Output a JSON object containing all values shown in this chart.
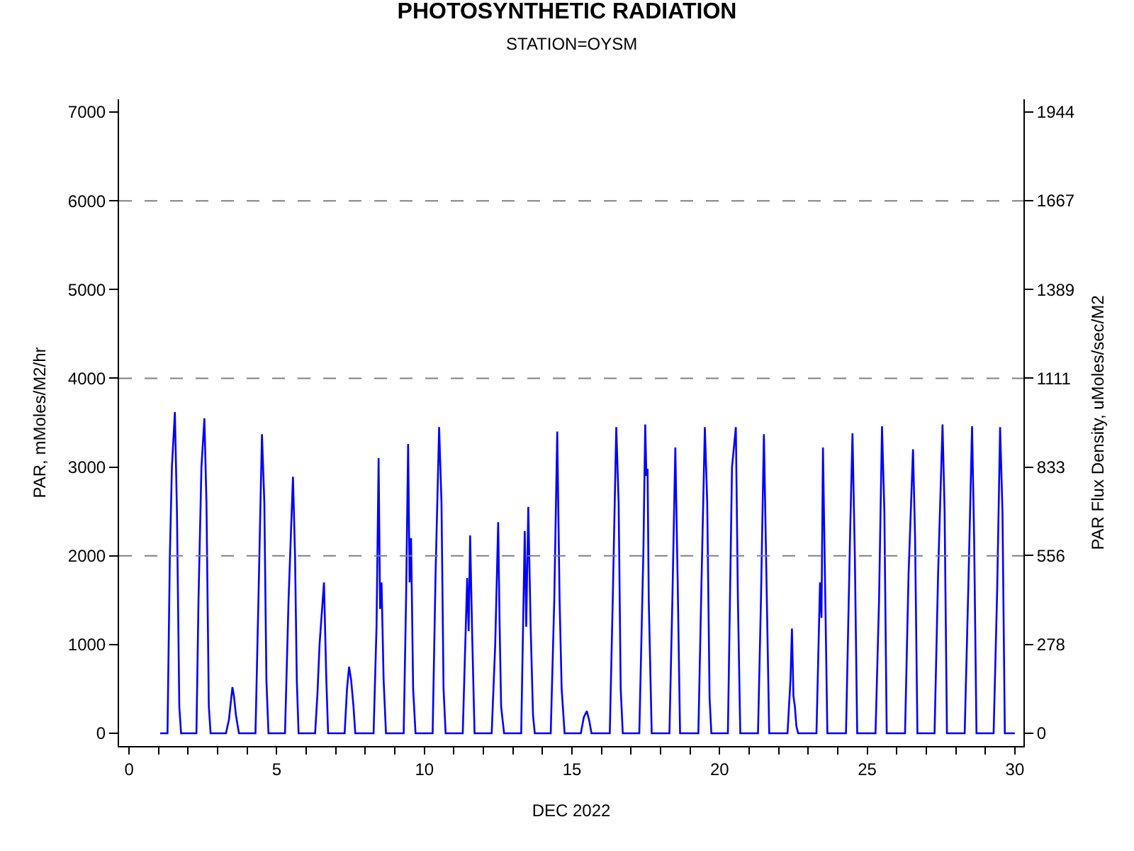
{
  "chart_data": {
    "type": "line",
    "title": "PHOTOSYNTHETIC RADIATION",
    "subtitle": "STATION=OYSM",
    "xlabel": "DEC 2022",
    "ylabel": "PAR, mMoles/M2/hr",
    "y2label": "PAR Flux Density, uMoles/sec/M2",
    "xlim": [
      -0.34,
      30.29
    ],
    "ylim": [
      -144,
      7144
    ],
    "y2lim": [
      -40,
      1984
    ],
    "xticks": [
      0,
      {
        "value": 1,
        "label": null
      },
      {
        "value": 2,
        "label": null
      },
      {
        "value": 3,
        "label": null
      },
      {
        "value": 4,
        "label": null
      },
      5,
      {
        "value": 6,
        "label": null
      },
      {
        "value": 7,
        "label": null
      },
      {
        "value": 8,
        "label": null
      },
      {
        "value": 9,
        "label": null
      },
      10,
      {
        "value": 11,
        "label": null
      },
      {
        "value": 12,
        "label": null
      },
      {
        "value": 13,
        "label": null
      },
      {
        "value": 14,
        "label": null
      },
      15,
      {
        "value": 16,
        "label": null
      },
      {
        "value": 17,
        "label": null
      },
      {
        "value": 18,
        "label": null
      },
      {
        "value": 19,
        "label": null
      },
      20,
      {
        "value": 21,
        "label": null
      },
      {
        "value": 22,
        "label": null
      },
      {
        "value": 23,
        "label": null
      },
      {
        "value": 24,
        "label": null
      },
      25,
      {
        "value": 26,
        "label": null
      },
      {
        "value": 27,
        "label": null
      },
      {
        "value": 28,
        "label": null
      },
      {
        "value": 29,
        "label": null
      },
      30
    ],
    "yticks": [
      0,
      1000,
      2000,
      3000,
      4000,
      5000,
      6000,
      7000
    ],
    "y2ticks": [
      0,
      278,
      556,
      833,
      1111,
      1389,
      1667,
      1944
    ],
    "grid": false,
    "marker": "none",
    "line_style": "solid",
    "ref_lines": [
      {
        "axis": "y",
        "value": 2000,
        "color": "#808080",
        "line_style": "dashed"
      },
      {
        "axis": "y",
        "value": 4000,
        "color": "#808080",
        "line_style": "dashed"
      },
      {
        "axis": "y",
        "value": 6000,
        "color": "#808080",
        "line_style": "dashed"
      }
    ],
    "series": [
      {
        "color": "#0000ff",
        "x": [
          1.05,
          1.3,
          1.38,
          1.45,
          1.55,
          1.62,
          1.7,
          1.76,
          2.28,
          2.35,
          2.45,
          2.55,
          2.62,
          2.7,
          2.76,
          3.28,
          3.38,
          3.5,
          3.55,
          3.62,
          3.72,
          4.28,
          4.38,
          4.5,
          4.58,
          4.65,
          4.72,
          5.28,
          5.4,
          5.55,
          5.62,
          5.68,
          5.74,
          6.3,
          6.38,
          6.45,
          6.6,
          6.68,
          6.74,
          7.3,
          7.38,
          7.45,
          7.52,
          7.6,
          7.66,
          8.28,
          8.38,
          8.45,
          8.5,
          8.55,
          8.62,
          8.7,
          9.3,
          9.38,
          9.45,
          9.5,
          9.55,
          9.62,
          9.7,
          10.28,
          10.38,
          10.5,
          10.58,
          10.65,
          10.72,
          11.3,
          11.45,
          11.5,
          11.55,
          11.62,
          11.7,
          12.28,
          12.4,
          12.5,
          12.55,
          12.6,
          12.7,
          13.28,
          13.4,
          13.45,
          13.52,
          13.6,
          13.68,
          13.74,
          14.28,
          14.4,
          14.5,
          14.58,
          14.65,
          14.75,
          15.3,
          15.4,
          15.5,
          15.58,
          15.66,
          16.28,
          16.38,
          16.5,
          16.58,
          16.65,
          16.72,
          17.28,
          17.42,
          17.48,
          17.52,
          17.56,
          17.6,
          17.7,
          18.3,
          18.4,
          18.5,
          18.58,
          18.66,
          19.28,
          19.38,
          19.5,
          19.58,
          19.66,
          19.72,
          20.28,
          20.42,
          20.55,
          20.62,
          20.7,
          21.3,
          21.4,
          21.5,
          21.6,
          21.68,
          22.3,
          22.4,
          22.45,
          22.5,
          22.55,
          22.6,
          22.66,
          23.28,
          23.4,
          23.45,
          23.5,
          23.58,
          23.65,
          24.28,
          24.42,
          24.5,
          24.58,
          24.66,
          25.28,
          25.4,
          25.5,
          25.58,
          25.66,
          26.28,
          26.4,
          26.55,
          26.62,
          26.7,
          27.28,
          27.4,
          27.55,
          27.62,
          27.7,
          28.3,
          28.42,
          28.55,
          28.62,
          28.7,
          29.28,
          29.4,
          29.5,
          29.58,
          29.66,
          30.0
        ],
        "values": [
          0,
          0,
          2000,
          3000,
          3620,
          2500,
          300,
          0,
          0,
          1500,
          3000,
          3550,
          2600,
          300,
          0,
          0,
          150,
          520,
          420,
          200,
          0,
          0,
          1500,
          3370,
          2600,
          600,
          0,
          0,
          1500,
          2890,
          2000,
          600,
          0,
          0,
          450,
          1000,
          1700,
          600,
          0,
          0,
          500,
          750,
          600,
          300,
          0,
          0,
          1200,
          3100,
          1400,
          1700,
          600,
          0,
          0,
          1500,
          3260,
          1700,
          2200,
          500,
          0,
          0,
          1800,
          3450,
          2600,
          500,
          0,
          0,
          1750,
          1150,
          2230,
          1100,
          0,
          0,
          1000,
          2380,
          1200,
          300,
          0,
          0,
          2280,
          1200,
          2550,
          1200,
          200,
          0,
          0,
          1500,
          3400,
          1500,
          500,
          0,
          0,
          180,
          250,
          150,
          0,
          0,
          1500,
          3450,
          2600,
          500,
          0,
          0,
          2080,
          3480,
          2900,
          2980,
          1500,
          0,
          0,
          1500,
          3220,
          1700,
          0,
          0,
          1600,
          3450,
          2600,
          400,
          0,
          0,
          3000,
          3450,
          1500,
          0,
          0,
          1500,
          3370,
          1500,
          0,
          0,
          600,
          1180,
          420,
          300,
          80,
          0,
          0,
          1700,
          1300,
          3220,
          1500,
          0,
          0,
          2250,
          3380,
          2000,
          0,
          0,
          1500,
          3460,
          2500,
          0,
          0,
          1800,
          3200,
          2200,
          0,
          0,
          1800,
          3480,
          2500,
          0,
          0,
          1600,
          3460,
          2200,
          0,
          0,
          1600,
          3450,
          2500,
          0,
          0
        ]
      }
    ]
  }
}
